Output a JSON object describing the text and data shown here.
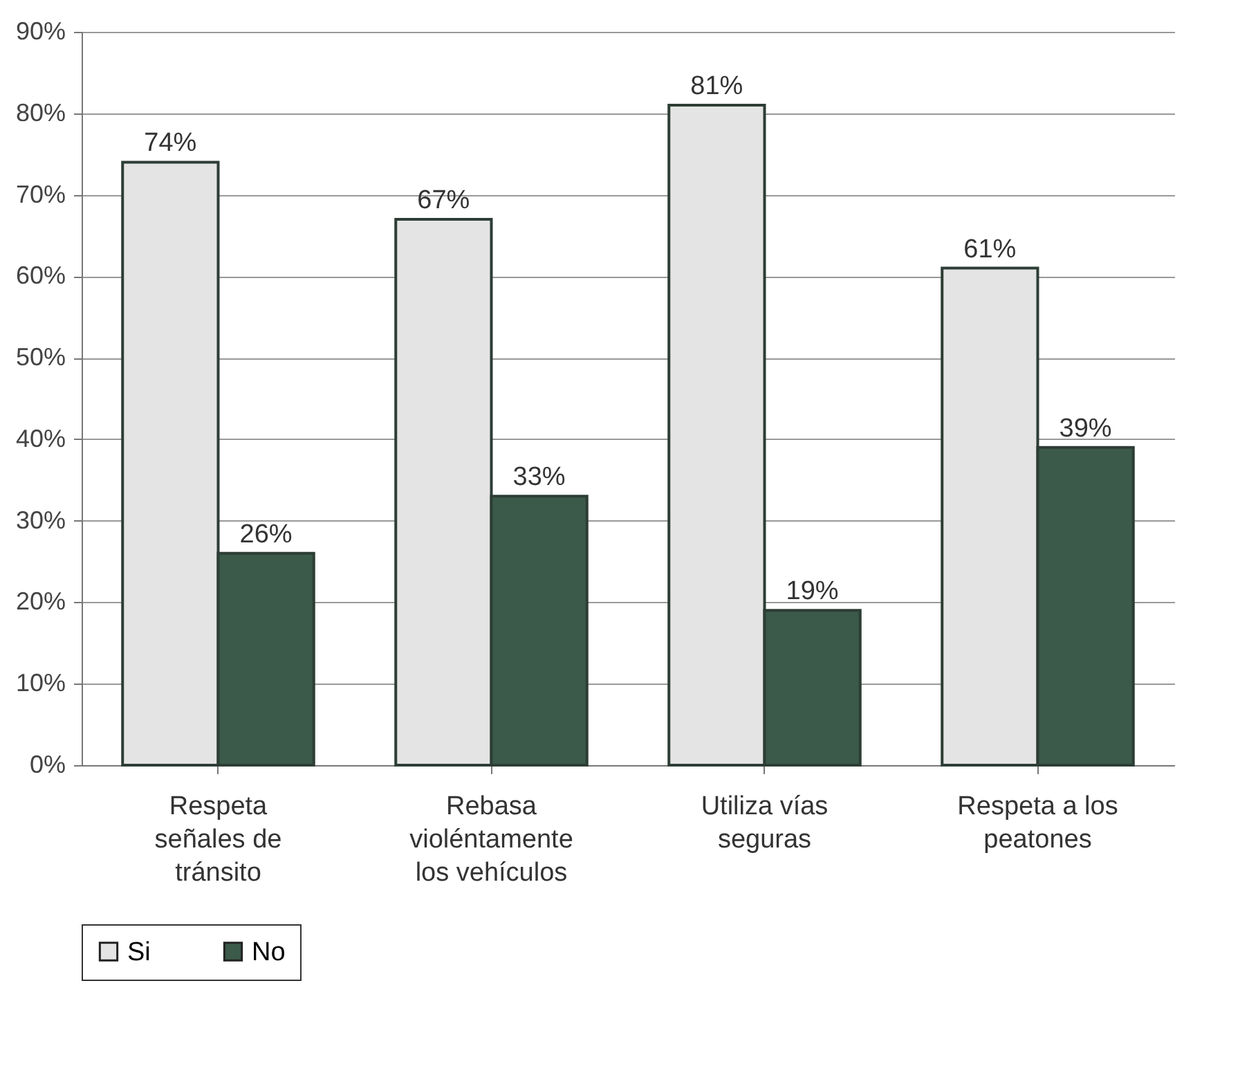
{
  "chart_data": {
    "type": "bar",
    "categories": [
      "Respeta señales de tránsito",
      "Rebasa violéntamente los vehículos",
      "Utiliza vías seguras",
      "Respeta a los peatones"
    ],
    "series": [
      {
        "name": "Si",
        "color": "#e4e4e4",
        "values": [
          74,
          67,
          81,
          61
        ],
        "value_labels": [
          "74%",
          "67%",
          "81%",
          "61%"
        ]
      },
      {
        "name": "No",
        "color": "#3b5a4a",
        "values": [
          26,
          33,
          19,
          39
        ],
        "value_labels": [
          "26%",
          "33%",
          "19%",
          "39%"
        ]
      }
    ],
    "ylim": [
      0,
      90
    ],
    "yticks": [
      {
        "value": 0,
        "label": "0%"
      },
      {
        "value": 10,
        "label": "10%"
      },
      {
        "value": 20,
        "label": "20%"
      },
      {
        "value": 30,
        "label": "30%"
      },
      {
        "value": 40,
        "label": "40%"
      },
      {
        "value": 50,
        "label": "50%"
      },
      {
        "value": 60,
        "label": "60%"
      },
      {
        "value": 70,
        "label": "70%"
      },
      {
        "value": 80,
        "label": "80%"
      },
      {
        "value": 90,
        "label": "90%"
      }
    ],
    "grid": "y",
    "legend": "bottom"
  }
}
